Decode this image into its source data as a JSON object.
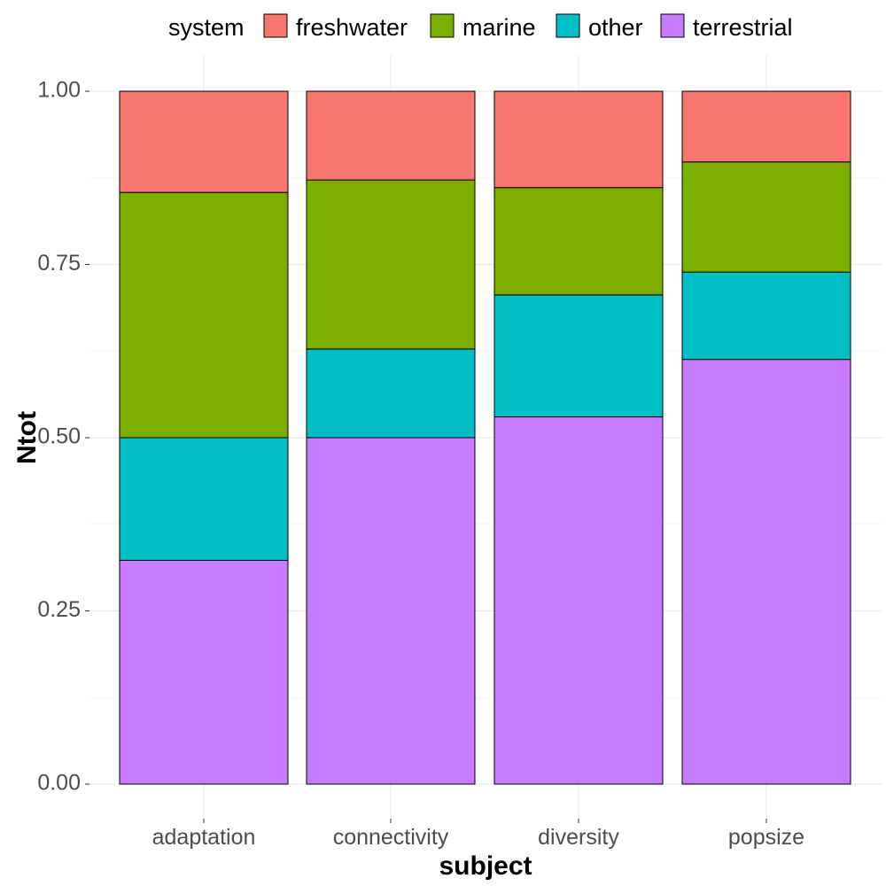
{
  "chart_data": {
    "type": "bar",
    "stacked": true,
    "categories": [
      "adaptation",
      "connectivity",
      "diversity",
      "popsize"
    ],
    "series": [
      {
        "name": "terrestrial",
        "color": "#C77CFF",
        "values": [
          0.323,
          0.5,
          0.53,
          0.613
        ]
      },
      {
        "name": "other",
        "color": "#00BFC4",
        "values": [
          0.177,
          0.128,
          0.176,
          0.126
        ]
      },
      {
        "name": "marine",
        "color": "#7CAE00",
        "values": [
          0.354,
          0.244,
          0.155,
          0.159
        ]
      },
      {
        "name": "freshwater",
        "color": "#F8766D",
        "values": [
          0.146,
          0.128,
          0.139,
          0.102
        ]
      }
    ],
    "legend_title": "system",
    "legend_order": [
      "freshwater",
      "marine",
      "other",
      "terrestrial"
    ],
    "legend_position": "top",
    "xlabel": "subject",
    "ylabel": "Ntot",
    "ylim": [
      0,
      1
    ],
    "yticks": [
      0,
      0.25,
      0.5,
      0.75,
      1
    ],
    "ytick_labels": [
      "0.00",
      "0.25",
      "0.50",
      "0.75",
      "1.00"
    ],
    "grid": true
  }
}
